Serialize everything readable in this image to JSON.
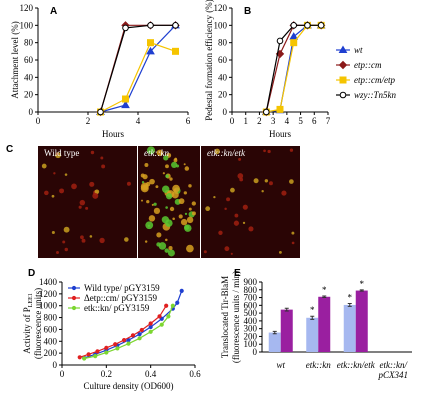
{
  "chart_data": [
    {
      "type": "line",
      "panel": "A",
      "y_label": "Attachment level (%)",
      "x_label": "Hours",
      "xlim": [
        0,
        6
      ],
      "xticks": [
        0,
        2,
        4,
        6
      ],
      "ylim": [
        0,
        120
      ],
      "yticks": [
        0,
        20,
        40,
        60,
        80,
        100,
        120
      ],
      "series": [
        {
          "name": "wt",
          "color": "#1f3fd0",
          "marker": "triangle",
          "x": [
            2.5,
            3.5,
            4.5,
            5.5
          ],
          "values": [
            0,
            8,
            70,
            100
          ]
        },
        {
          "name": "etp::cm",
          "color": "#8b1a1a",
          "marker": "diamond",
          "x": [
            2.5,
            3.5,
            4.5,
            5.5
          ],
          "values": [
            0,
            100,
            100,
            100
          ]
        },
        {
          "name": "etp::cm/etp",
          "color": "#f5c400",
          "marker": "square",
          "x": [
            2.5,
            3.5,
            4.5,
            5.5
          ],
          "values": [
            0,
            15,
            80,
            70
          ]
        },
        {
          "name": "wzy::Tn5kn",
          "color": "#000000",
          "marker": "circle",
          "x": [
            2.5,
            3.5,
            4.5,
            5.5
          ],
          "values": [
            0,
            97,
            100,
            100
          ]
        }
      ]
    },
    {
      "type": "line",
      "panel": "B",
      "y_label": "Pedestal formation efficiency (%)",
      "x_label": "Hours",
      "legend": "right",
      "xlim": [
        0,
        7
      ],
      "xticks": [
        0,
        1,
        2,
        3,
        4,
        5,
        6,
        7
      ],
      "ylim": [
        0,
        120
      ],
      "yticks": [
        0,
        20,
        40,
        60,
        80,
        100,
        120
      ],
      "series": [
        {
          "name": "wt",
          "color": "#1f3fd0",
          "marker": "triangle",
          "x": [
            2.5,
            3.5,
            4.5,
            5.5,
            6.5
          ],
          "values": [
            0,
            2,
            87,
            100,
            100
          ]
        },
        {
          "name": "etp::cm",
          "color": "#8b1a1a",
          "marker": "diamond",
          "x": [
            2.5,
            3.5,
            4.5,
            5.5,
            6.5
          ],
          "values": [
            0,
            67,
            100,
            100,
            100
          ]
        },
        {
          "name": "etp::cm/etp",
          "color": "#f5c400",
          "marker": "square",
          "x": [
            2.5,
            3.5,
            4.5,
            5.5,
            6.5
          ],
          "values": [
            0,
            3,
            80,
            100,
            100
          ]
        },
        {
          "name": "wzy::Tn5kn",
          "color": "#000000",
          "marker": "circle",
          "x": [
            2.5,
            3.5,
            4.5,
            5.5,
            6.5
          ],
          "values": [
            0,
            82,
            100,
            100,
            100
          ]
        }
      ]
    },
    {
      "type": "line",
      "panel": "D",
      "y_label": "Activity of P",
      "y_label_sub": "LEE1",
      "y_label_2": "(fluorescence units)",
      "x_label": "Culture density (OD600)",
      "legend": "upper left",
      "xlim": [
        0,
        0.6
      ],
      "xticks": [
        0,
        0.2,
        0.4,
        0.6
      ],
      "ylim": [
        0,
        1400
      ],
      "yticks": [
        0,
        200,
        400,
        600,
        800,
        1000,
        1200,
        1400
      ],
      "series": [
        {
          "name": "Wild type/ pGY3159",
          "color": "#1f3fd0",
          "marker": "dot",
          "x": [
            0.1,
            0.15,
            0.2,
            0.25,
            0.3,
            0.35,
            0.4,
            0.45,
            0.5,
            0.52,
            0.54
          ],
          "values": [
            120,
            180,
            250,
            330,
            420,
            520,
            640,
            780,
            950,
            1050,
            1250
          ]
        },
        {
          "name": "Δetp::cm/ pGY3159",
          "color": "#e02020",
          "marker": "dot",
          "x": [
            0.08,
            0.12,
            0.16,
            0.2,
            0.24,
            0.28,
            0.32,
            0.36,
            0.4,
            0.44,
            0.47
          ],
          "values": [
            130,
            180,
            230,
            290,
            350,
            420,
            500,
            590,
            700,
            820,
            1000
          ]
        },
        {
          "name": "etk::kn/ pGY3159",
          "color": "#7cd630",
          "marker": "dot",
          "x": [
            0.1,
            0.15,
            0.2,
            0.25,
            0.3,
            0.35,
            0.4,
            0.45,
            0.48,
            0.5
          ],
          "values": [
            110,
            150,
            210,
            280,
            360,
            450,
            560,
            680,
            820,
            1000
          ]
        }
      ]
    },
    {
      "type": "bar",
      "panel": "E",
      "y_label": "Translocated Tir-BlaM",
      "y_label_2": "(fluorescence units / min)",
      "ylim": [
        0,
        900
      ],
      "yticks": [
        0,
        100,
        200,
        300,
        400,
        500,
        600,
        700,
        800,
        900
      ],
      "categories": [
        "wt",
        "etk::kn",
        "etk::kn/etk",
        "etk::kn/\npCX341"
      ],
      "series": [
        {
          "color": "#a6b8f0",
          "values": [
            250,
            440,
            605,
            0
          ],
          "errors": [
            15,
            20,
            18,
            0
          ]
        },
        {
          "color": "#9a1fa0",
          "values": [
            545,
            710,
            790,
            0
          ],
          "errors": [
            18,
            10,
            8,
            0
          ]
        }
      ],
      "annotations": [
        {
          "text": "*",
          "series": 0,
          "category": 1
        },
        {
          "text": "*",
          "series": 1,
          "category": 1
        },
        {
          "text": "*",
          "series": 0,
          "category": 2
        },
        {
          "text": "*",
          "series": 1,
          "category": 2
        }
      ]
    }
  ],
  "panel_c": {
    "label": "C",
    "images": [
      "Wild type",
      "etk::kn",
      "etk::kn/etk"
    ]
  }
}
